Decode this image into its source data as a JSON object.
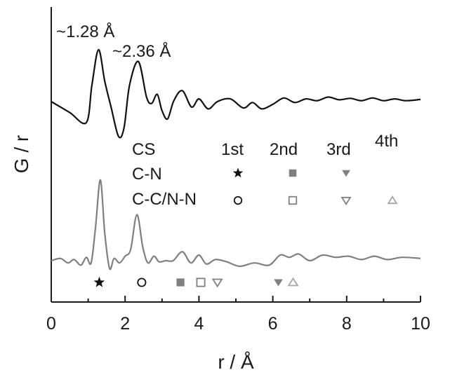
{
  "chart_data": {
    "type": "line",
    "xlabel": "r / Å",
    "ylabel": "G / r",
    "xlim": [
      0,
      10
    ],
    "x_ticks": [
      "0",
      "2",
      "4",
      "6",
      "8",
      "10"
    ],
    "y_ticks": [],
    "grid": false,
    "legend": {
      "position": "center-right",
      "rows": [
        {
          "label": "CS",
          "kind": "header",
          "columns": [
            "1st",
            "2nd",
            "3rd",
            "4th"
          ]
        },
        {
          "label": "C-N",
          "kind": "symbols",
          "symbols": [
            "filled-star",
            "filled-square",
            "filled-down-triangle"
          ]
        },
        {
          "label": "C-C/N-N",
          "kind": "symbols",
          "symbols": [
            "open-circle",
            "open-square",
            "open-down-triangle",
            "open-up-triangle"
          ]
        }
      ]
    },
    "annotations": [
      {
        "text": "~1.28 Å",
        "x": 1.28
      },
      {
        "text": "~2.36 Å",
        "x": 2.36
      }
    ],
    "series": [
      {
        "color": "#111111",
        "x": [
          0.0,
          0.5,
          0.95,
          1.1,
          1.28,
          1.45,
          1.62,
          1.82,
          1.97,
          2.12,
          2.36,
          2.58,
          2.72,
          2.87,
          3.0,
          3.15,
          3.32,
          3.55,
          3.8,
          4.0,
          4.25,
          4.5,
          4.85,
          5.2,
          5.45,
          5.7,
          6.0,
          6.3,
          6.6,
          6.9,
          7.2,
          7.5,
          7.8,
          8.1,
          8.4,
          8.7,
          9.0,
          9.3,
          9.6,
          10.0
        ],
        "values": [
          0.0,
          -0.6,
          -1.15,
          0.9,
          2.85,
          1.1,
          -0.3,
          -1.9,
          -1.45,
          0.9,
          2.2,
          0.25,
          -0.1,
          0.4,
          -0.5,
          -0.95,
          0.05,
          0.6,
          -0.3,
          0.15,
          -0.4,
          0.0,
          0.15,
          -0.35,
          -0.05,
          -0.4,
          -0.15,
          0.2,
          -0.05,
          0.15,
          0.05,
          0.25,
          0.1,
          0.18,
          0.05,
          0.2,
          0.05,
          0.15,
          0.05,
          0.12
        ]
      },
      {
        "color": "#7f7f7f",
        "x": [
          0.0,
          0.25,
          0.45,
          0.62,
          0.8,
          0.95,
          1.08,
          1.2,
          1.33,
          1.45,
          1.58,
          1.7,
          1.85,
          2.0,
          2.15,
          2.32,
          2.48,
          2.62,
          2.78,
          2.92,
          3.1,
          3.3,
          3.55,
          3.78,
          4.0,
          4.2,
          4.45,
          4.75,
          5.1,
          5.5,
          5.9,
          6.2,
          6.45,
          6.7,
          7.0,
          7.35,
          7.7,
          8.05,
          8.4,
          8.75,
          9.1,
          9.5,
          10.0
        ],
        "values": [
          0.0,
          0.1,
          -0.1,
          0.05,
          -0.2,
          0.15,
          -0.1,
          1.5,
          3.6,
          1.2,
          -0.35,
          0.1,
          -0.1,
          0.2,
          0.5,
          2.05,
          0.6,
          -0.1,
          0.2,
          -0.05,
          0.0,
          0.0,
          0.4,
          -0.1,
          0.25,
          -0.15,
          0.05,
          -0.05,
          -0.25,
          -0.1,
          -0.2,
          0.25,
          0.15,
          0.3,
          0.0,
          0.25,
          0.15,
          0.2,
          0.05,
          0.2,
          0.05,
          0.15,
          0.1
        ]
      }
    ],
    "markers": [
      {
        "symbol": "filled-star",
        "x": 1.3
      },
      {
        "symbol": "open-circle",
        "x": 2.45
      },
      {
        "symbol": "filled-square",
        "x": 3.5
      },
      {
        "symbol": "open-square",
        "x": 4.05
      },
      {
        "symbol": "open-down-triangle",
        "x": 4.5
      },
      {
        "symbol": "filled-down-triangle",
        "x": 6.15
      },
      {
        "symbol": "open-up-triangle",
        "x": 6.55
      }
    ]
  }
}
